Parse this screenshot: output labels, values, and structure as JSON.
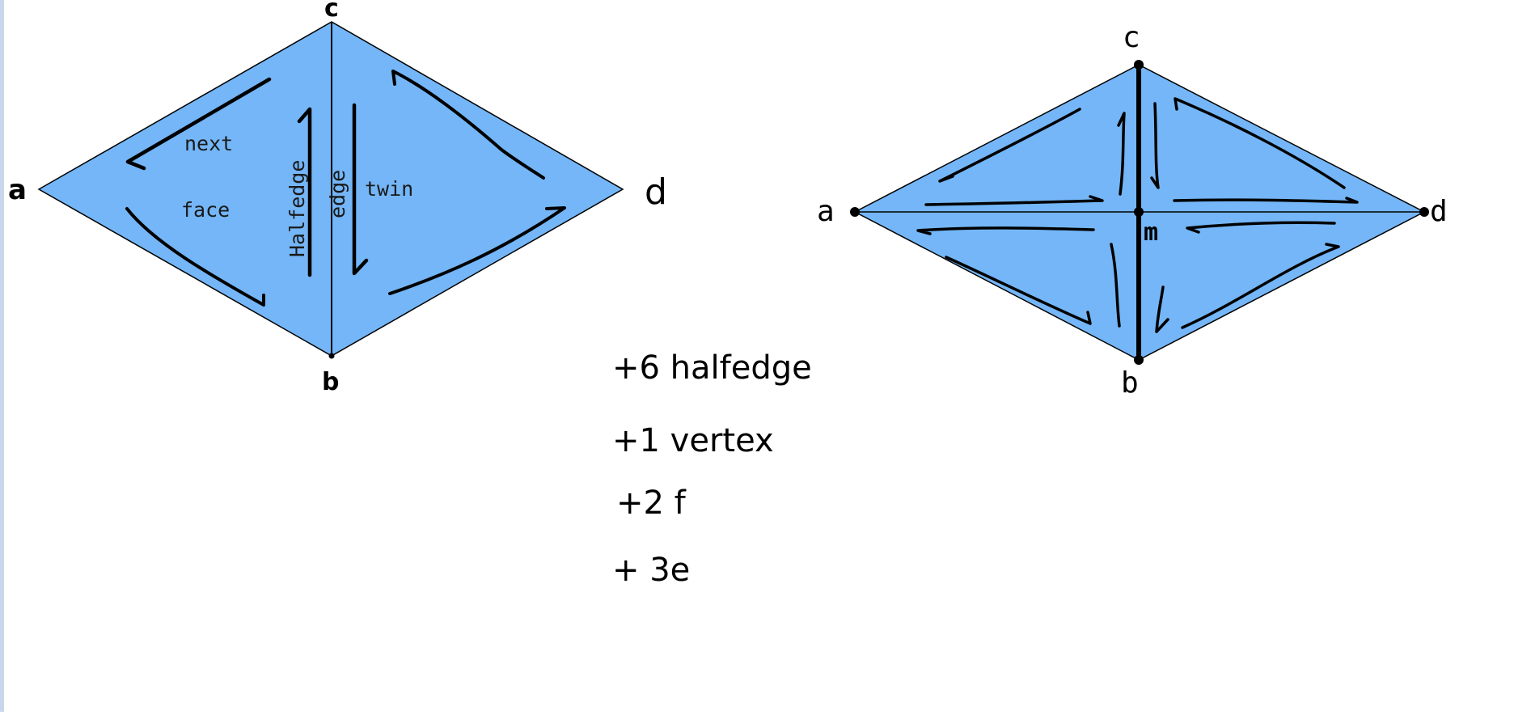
{
  "left_diagram": {
    "vertices": {
      "a": "a",
      "b": "b",
      "c": "c",
      "d": "d"
    },
    "labels": {
      "next": "next",
      "face": "face",
      "halfedge": "Halfedge",
      "edge": "edge",
      "twin": "twin"
    }
  },
  "right_diagram": {
    "vertices": {
      "a": "a",
      "b": "b",
      "c": "c",
      "d": "d",
      "m": "m"
    }
  },
  "notes": [
    "+6 halfedge",
    "+1 vertex",
    "+2 f",
    "+ 3e"
  ],
  "colors": {
    "fill": "#74b6f7",
    "stroke": "#000000",
    "side_bar": "#c9d7ea"
  }
}
